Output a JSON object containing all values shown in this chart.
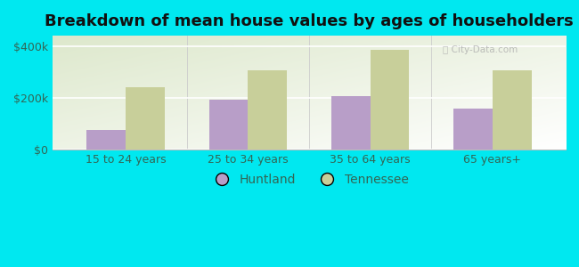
{
  "title": "Breakdown of mean house values by ages of householders",
  "categories": [
    "15 to 24 years",
    "25 to 34 years",
    "35 to 64 years",
    "65 years+"
  ],
  "huntland_values": [
    75000,
    192000,
    205000,
    158000
  ],
  "tennessee_values": [
    240000,
    305000,
    385000,
    305000
  ],
  "huntland_color": "#b89ec8",
  "tennessee_color": "#c8cf9a",
  "background_color": "#00e8f0",
  "ylabel_ticks": [
    0,
    200000,
    400000
  ],
  "ylabel_labels": [
    "$0",
    "$200k",
    "$400k"
  ],
  "ylim": [
    0,
    440000
  ],
  "legend_labels": [
    "Huntland",
    "Tennessee"
  ],
  "title_fontsize": 13,
  "tick_fontsize": 9,
  "legend_fontsize": 10,
  "bar_width": 0.32,
  "text_color": "#336655"
}
